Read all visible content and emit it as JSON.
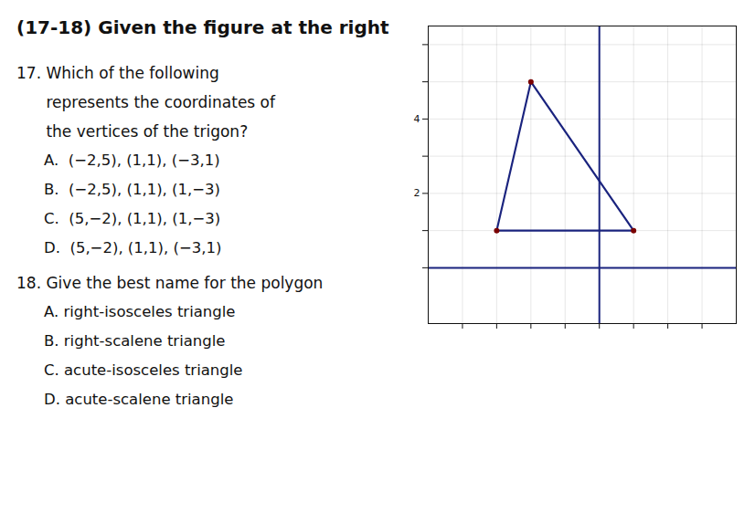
{
  "chart_data": {
    "type": "line",
    "title": "(17-18) Given the figure at the right",
    "annotations": [
      "17. Which of the following",
      "      represents the coordinates of",
      "      the vertices of the trigon?",
      "A.  (−2,5), (1,1), (−3,1)",
      "B.  (−2,5), (1,1), (1,−3)",
      "C.  (5,−2), (1,1), (1,−3)",
      "D.  (5,−2), (1,1), (−3,1)",
      "18. Give the best name for the polygon",
      "A. right-isosceles triangle",
      "B. right-scalene triangle",
      "C. acute-isosceles triangle",
      "D. acute-scalene triangle"
    ],
    "series": [
      {
        "type": "line",
        "color": "#1a237e",
        "x": [
          -2,
          -3,
          1,
          -2
        ],
        "values": [
          5,
          1,
          1,
          5
        ]
      },
      {
        "type": "scatter",
        "color": "#7a0000",
        "x": [
          -2,
          -3,
          1
        ],
        "values": [
          5,
          1,
          1
        ]
      }
    ],
    "xlim": [
      -5,
      4
    ],
    "ylim": [
      -1.5,
      6.5
    ],
    "xticks": [
      -4,
      -3,
      -2,
      -1,
      0,
      1,
      2,
      3
    ],
    "yticks": [
      {
        "value": 0,
        "label": null
      },
      {
        "value": 1,
        "label": null
      },
      2,
      {
        "value": 3,
        "label": null
      },
      4,
      {
        "value": 5,
        "label": null
      },
      {
        "value": 6,
        "label": null
      }
    ],
    "grid": true,
    "tick_labels": "y"
  }
}
